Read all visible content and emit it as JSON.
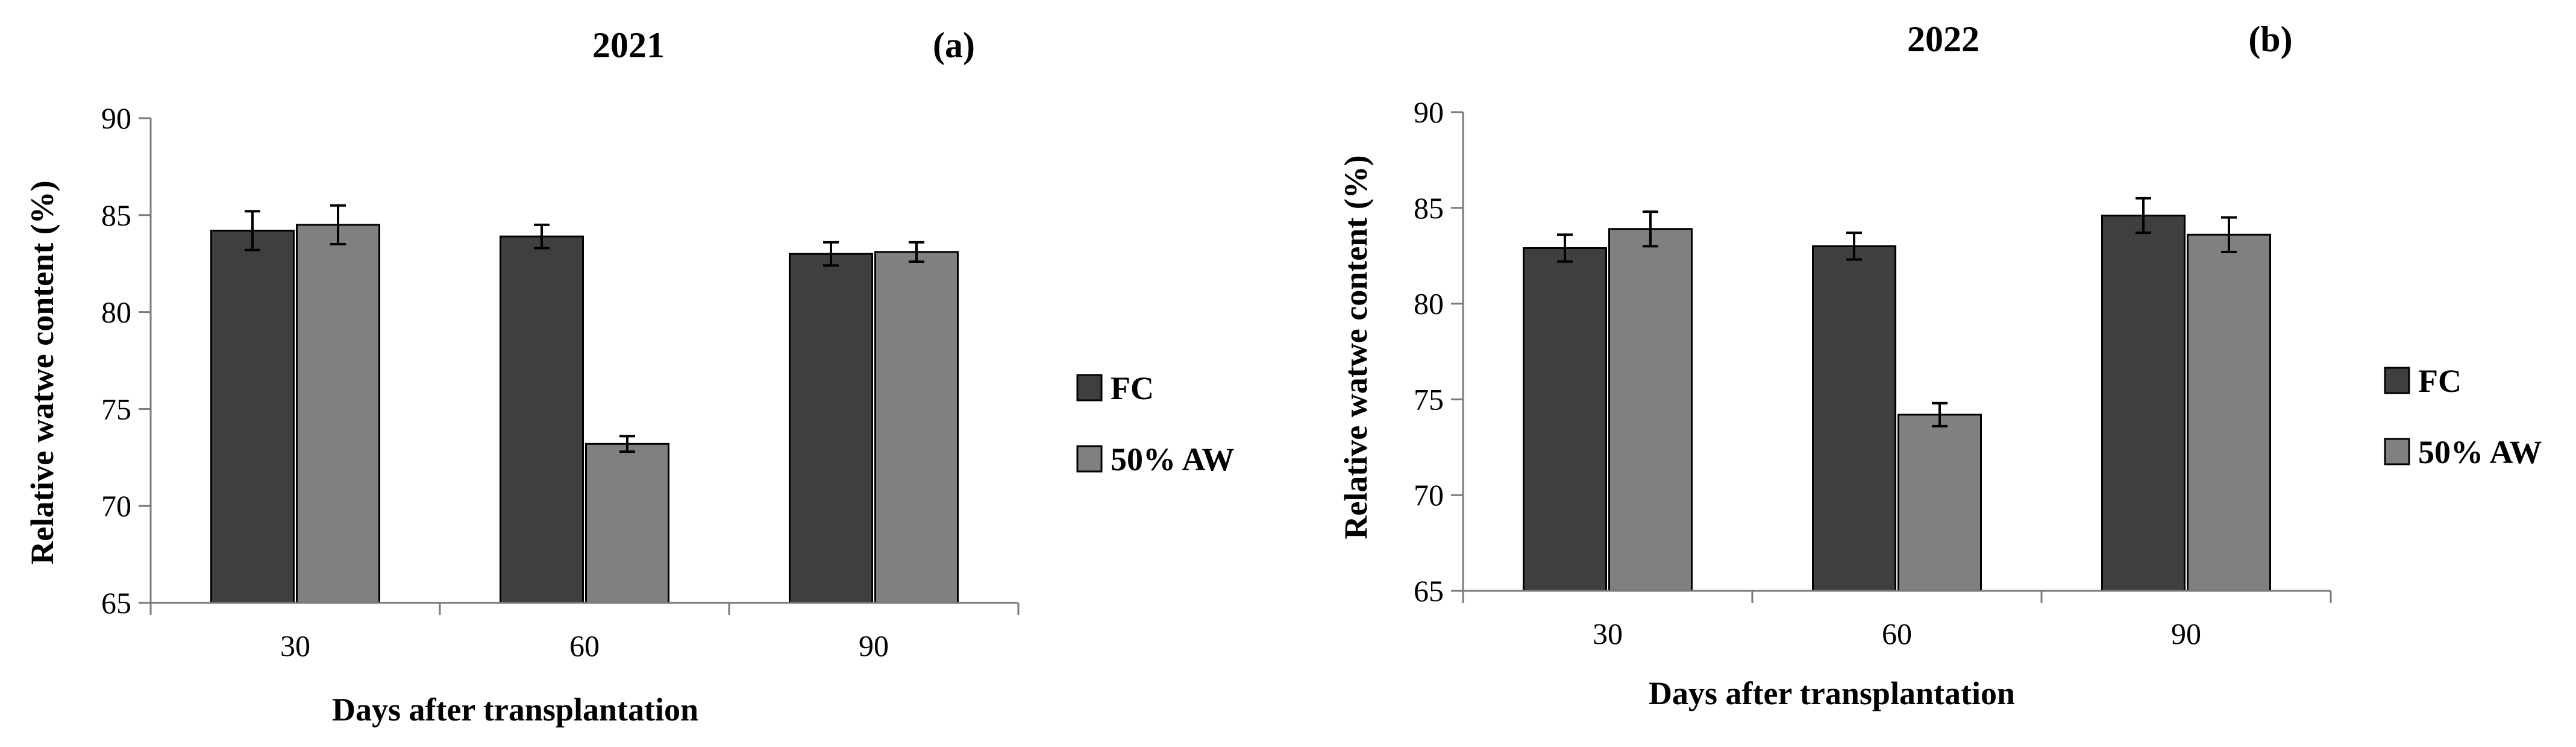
{
  "chart_data": [
    {
      "type": "bar",
      "title": "2021",
      "panel_label": "(a)",
      "xlabel": "Days after transplantation",
      "ylabel": "Relative watwe content (%)",
      "categories": [
        "30",
        "60",
        "90"
      ],
      "ylim": [
        65,
        90
      ],
      "yticks": [
        65,
        70,
        75,
        80,
        85,
        90
      ],
      "legend_position": "right",
      "series": [
        {
          "name": "FC",
          "color": "#3f3f3f",
          "values": [
            84.2,
            83.9,
            83.0
          ],
          "errors": [
            1.0,
            0.6,
            0.6
          ]
        },
        {
          "name": "50% AW",
          "color": "#808080",
          "values": [
            84.5,
            73.2,
            83.1
          ],
          "errors": [
            1.0,
            0.4,
            0.5
          ]
        }
      ]
    },
    {
      "type": "bar",
      "title": "2022",
      "panel_label": "(b)",
      "xlabel": "Days after transplantation",
      "ylabel": "Relative watwe content (%)",
      "categories": [
        "30",
        "60",
        "90"
      ],
      "ylim": [
        65,
        90
      ],
      "yticks": [
        65,
        70,
        75,
        80,
        85,
        90
      ],
      "legend_position": "right",
      "series": [
        {
          "name": "FC",
          "color": "#3f3f3f",
          "values": [
            82.9,
            83.0,
            84.6
          ],
          "errors": [
            0.7,
            0.7,
            0.9
          ]
        },
        {
          "name": "50% AW",
          "color": "#808080",
          "values": [
            83.9,
            74.2,
            83.6
          ],
          "errors": [
            0.9,
            0.6,
            0.9
          ]
        }
      ]
    }
  ]
}
